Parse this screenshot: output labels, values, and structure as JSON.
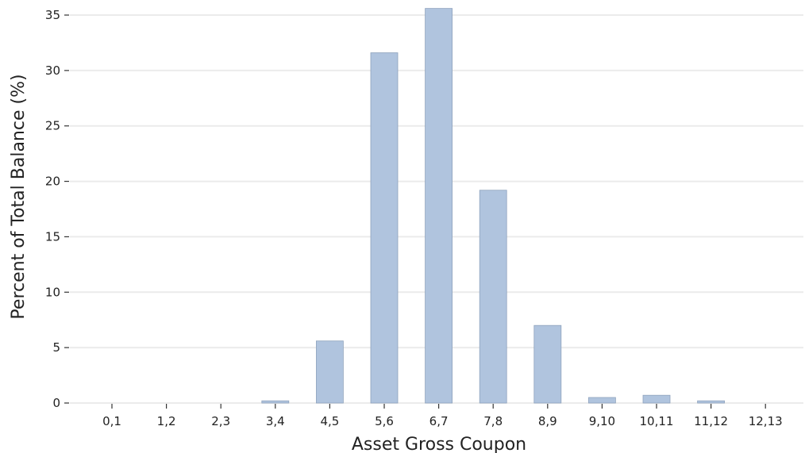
{
  "chart_data": {
    "type": "bar",
    "title": "",
    "xlabel": "Asset Gross Coupon",
    "ylabel": "Percent of Total Balance (%)",
    "categories": [
      "0,1",
      "1,2",
      "2,3",
      "3,4",
      "4,5",
      "5,6",
      "6,7",
      "7,8",
      "8,9",
      "9,10",
      "10,11",
      "11,12",
      "12,13"
    ],
    "values": [
      0,
      0,
      0,
      0.2,
      5.6,
      31.6,
      35.6,
      19.2,
      7.0,
      0.5,
      0.7,
      0.2,
      0
    ],
    "ylim": [
      0,
      36
    ],
    "yticks": [
      0,
      5,
      10,
      15,
      20,
      25,
      30,
      35
    ],
    "grid": "horizontal",
    "colors": {
      "bar_fill": "#b0c4de",
      "bar_edge": "#8fa3bd",
      "grid": "#ebebeb",
      "text": "#222222"
    }
  }
}
